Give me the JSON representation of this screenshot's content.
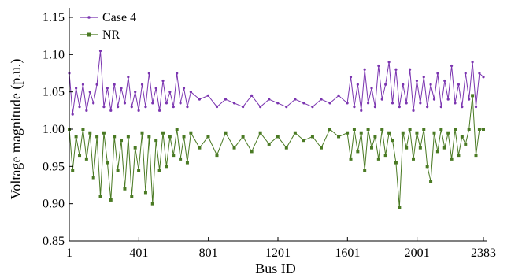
{
  "chart_data": {
    "type": "line",
    "title": "",
    "xlabel": "Bus ID",
    "ylabel": "Voltage magnitude (p.u.)",
    "xlim": [
      1,
      2383
    ],
    "ylim": [
      0.85,
      1.15
    ],
    "x_ticks": [
      1,
      401,
      801,
      1201,
      1601,
      2001,
      2383
    ],
    "y_ticks": [
      "0.85",
      "0.90",
      "0.95",
      "1.00",
      "1.05",
      "1.10",
      "1.15"
    ],
    "grid": false,
    "legend_position": "top-left",
    "series": [
      {
        "name": "Case 4",
        "color": "#7b35b0",
        "marker": "dot",
        "x": [
          1,
          20,
          40,
          60,
          80,
          100,
          120,
          140,
          160,
          180,
          200,
          220,
          240,
          260,
          280,
          300,
          320,
          340,
          360,
          380,
          400,
          420,
          440,
          460,
          480,
          500,
          520,
          540,
          560,
          580,
          600,
          620,
          640,
          660,
          680,
          700,
          750,
          800,
          850,
          900,
          950,
          1000,
          1050,
          1100,
          1150,
          1200,
          1250,
          1300,
          1350,
          1400,
          1450,
          1500,
          1550,
          1600,
          1620,
          1640,
          1660,
          1680,
          1700,
          1720,
          1740,
          1760,
          1780,
          1800,
          1820,
          1840,
          1860,
          1880,
          1900,
          1920,
          1940,
          1960,
          1980,
          2000,
          2020,
          2040,
          2060,
          2080,
          2100,
          2120,
          2140,
          2160,
          2180,
          2200,
          2220,
          2240,
          2260,
          2280,
          2300,
          2320,
          2340,
          2360,
          2383
        ],
        "values": [
          1.075,
          1.02,
          1.055,
          1.03,
          1.06,
          1.025,
          1.05,
          1.035,
          1.06,
          1.105,
          1.03,
          1.055,
          1.025,
          1.06,
          1.03,
          1.055,
          1.035,
          1.07,
          1.03,
          1.05,
          1.025,
          1.06,
          1.03,
          1.075,
          1.035,
          1.055,
          1.025,
          1.065,
          1.035,
          1.05,
          1.03,
          1.075,
          1.035,
          1.055,
          1.03,
          1.05,
          1.04,
          1.045,
          1.03,
          1.04,
          1.035,
          1.03,
          1.045,
          1.03,
          1.04,
          1.035,
          1.03,
          1.04,
          1.035,
          1.03,
          1.04,
          1.035,
          1.045,
          1.035,
          1.07,
          1.03,
          1.06,
          1.025,
          1.08,
          1.035,
          1.055,
          1.03,
          1.085,
          1.04,
          1.06,
          1.09,
          1.035,
          1.08,
          1.03,
          1.06,
          1.035,
          1.08,
          1.025,
          1.065,
          1.035,
          1.07,
          1.03,
          1.06,
          1.04,
          1.075,
          1.03,
          1.065,
          1.04,
          1.085,
          1.035,
          1.06,
          1.03,
          1.075,
          1.04,
          1.09,
          1.03,
          1.075,
          1.07
        ]
      },
      {
        "name": "NR",
        "color": "#4a7a23",
        "marker": "square",
        "x": [
          1,
          20,
          40,
          60,
          80,
          100,
          120,
          140,
          160,
          180,
          200,
          220,
          240,
          260,
          280,
          300,
          320,
          340,
          360,
          380,
          400,
          420,
          440,
          460,
          480,
          500,
          520,
          540,
          560,
          580,
          600,
          620,
          640,
          660,
          680,
          700,
          750,
          800,
          850,
          900,
          950,
          1000,
          1050,
          1100,
          1150,
          1200,
          1250,
          1300,
          1350,
          1400,
          1450,
          1500,
          1550,
          1600,
          1620,
          1640,
          1660,
          1680,
          1700,
          1720,
          1740,
          1760,
          1780,
          1800,
          1820,
          1840,
          1860,
          1880,
          1900,
          1920,
          1940,
          1960,
          1980,
          2000,
          2020,
          2040,
          2060,
          2080,
          2100,
          2120,
          2140,
          2160,
          2180,
          2200,
          2220,
          2240,
          2260,
          2280,
          2300,
          2320,
          2340,
          2360,
          2383
        ],
        "values": [
          1.0,
          0.945,
          0.99,
          0.965,
          1.0,
          0.96,
          0.995,
          0.935,
          0.99,
          0.91,
          0.995,
          0.955,
          0.905,
          0.99,
          0.945,
          0.985,
          0.92,
          0.99,
          0.91,
          0.975,
          0.945,
          0.995,
          0.915,
          0.99,
          0.9,
          0.985,
          0.945,
          0.995,
          0.95,
          0.99,
          0.965,
          1.0,
          0.96,
          0.99,
          0.955,
          0.995,
          0.975,
          0.99,
          0.965,
          0.995,
          0.975,
          0.99,
          0.97,
          0.995,
          0.98,
          0.99,
          0.975,
          0.995,
          0.985,
          0.99,
          0.975,
          1.0,
          0.99,
          0.995,
          0.96,
          1.0,
          0.97,
          0.995,
          0.945,
          1.0,
          0.975,
          0.99,
          0.96,
          1.0,
          0.965,
          0.995,
          0.985,
          0.955,
          0.895,
          0.995,
          0.975,
          1.0,
          0.96,
          0.995,
          0.975,
          1.0,
          0.95,
          0.93,
          0.995,
          0.97,
          1.0,
          0.975,
          0.995,
          0.96,
          1.0,
          0.965,
          0.99,
          0.98,
          1.0,
          1.045,
          0.965,
          1.0,
          1.0
        ]
      }
    ]
  }
}
